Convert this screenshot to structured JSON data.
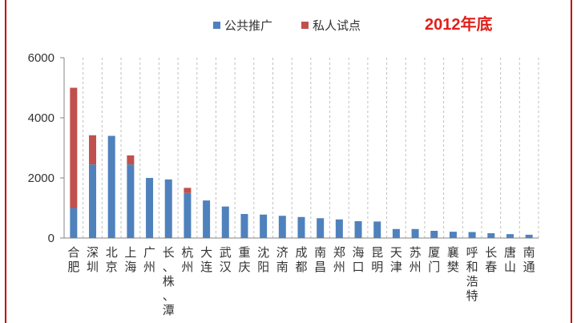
{
  "stamp": "2012年底",
  "colors": {
    "public": "#4f81bd",
    "private": "#c0504d",
    "frame": "#c00000",
    "stamp": "#e0201b",
    "grid": "#bfbfbf"
  },
  "chart_data": {
    "type": "bar",
    "stacked": true,
    "title": "",
    "xlabel": "",
    "ylabel": "",
    "ylim": [
      0,
      6000
    ],
    "yticks": [
      "0",
      "2000",
      "4000",
      "6000"
    ],
    "grid": "vertical-dashed",
    "legend_position": "top",
    "categories": [
      "合肥",
      "深圳",
      "北京",
      "上海",
      "广州",
      "长、株、潭",
      "杭州",
      "大连",
      "武汉",
      "重庆",
      "沈阳",
      "济南",
      "成都",
      "南昌",
      "郑州",
      "海口",
      "昆明",
      "天津",
      "苏州",
      "厦门",
      "襄樊",
      "呼和浩特",
      "长春",
      "唐山",
      "南通"
    ],
    "series": [
      {
        "name": "公共推广",
        "values": [
          1000,
          2450,
          3400,
          2450,
          2000,
          1950,
          1500,
          1250,
          1050,
          800,
          780,
          740,
          700,
          660,
          620,
          560,
          550,
          300,
          300,
          240,
          210,
          200,
          160,
          130,
          110
        ]
      },
      {
        "name": "私人试点",
        "values": [
          4000,
          970,
          0,
          300,
          0,
          0,
          170,
          0,
          0,
          0,
          0,
          0,
          0,
          0,
          0,
          0,
          0,
          0,
          0,
          0,
          0,
          0,
          0,
          0,
          0
        ]
      }
    ]
  }
}
